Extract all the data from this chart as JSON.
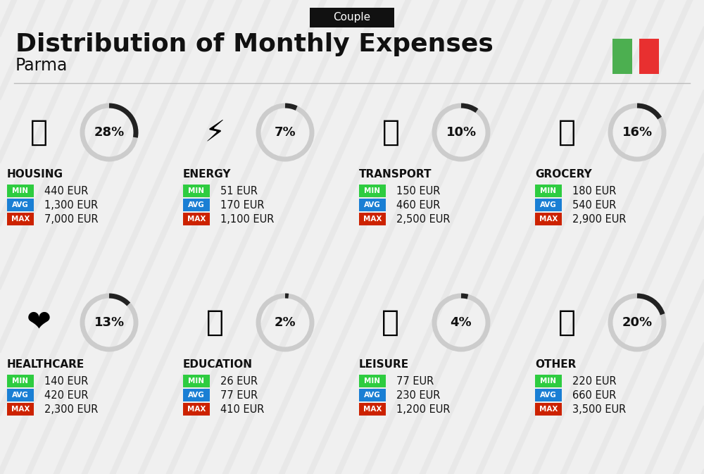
{
  "title": "Distribution of Monthly Expenses",
  "subtitle": "Couple",
  "city": "Parma",
  "bg_color": "#f0f0f0",
  "categories": [
    {
      "name": "HOUSING",
      "pct": 28,
      "min": "440 EUR",
      "avg": "1,300 EUR",
      "max": "7,000 EUR",
      "row": 0,
      "col": 0
    },
    {
      "name": "ENERGY",
      "pct": 7,
      "min": "51 EUR",
      "avg": "170 EUR",
      "max": "1,100 EUR",
      "row": 0,
      "col": 1
    },
    {
      "name": "TRANSPORT",
      "pct": 10,
      "min": "150 EUR",
      "avg": "460 EUR",
      "max": "2,500 EUR",
      "row": 0,
      "col": 2
    },
    {
      "name": "GROCERY",
      "pct": 16,
      "min": "180 EUR",
      "avg": "540 EUR",
      "max": "2,900 EUR",
      "row": 0,
      "col": 3
    },
    {
      "name": "HEALTHCARE",
      "pct": 13,
      "min": "140 EUR",
      "avg": "420 EUR",
      "max": "2,300 EUR",
      "row": 1,
      "col": 0
    },
    {
      "name": "EDUCATION",
      "pct": 2,
      "min": "26 EUR",
      "avg": "77 EUR",
      "max": "410 EUR",
      "row": 1,
      "col": 1
    },
    {
      "name": "LEISURE",
      "pct": 4,
      "min": "77 EUR",
      "avg": "230 EUR",
      "max": "1,200 EUR",
      "row": 1,
      "col": 2
    },
    {
      "name": "OTHER",
      "pct": 20,
      "min": "220 EUR",
      "avg": "660 EUR",
      "max": "3,500 EUR",
      "row": 1,
      "col": 3
    }
  ],
  "min_color": "#2ecc40",
  "avg_color": "#1a7fd4",
  "max_color": "#cc2200",
  "badge_text_color": "#ffffff",
  "label_color": "#111111",
  "circle_color": "#333333",
  "circle_bg": "#cccccc",
  "italy_green": "#4caf50",
  "italy_red": "#e83030"
}
